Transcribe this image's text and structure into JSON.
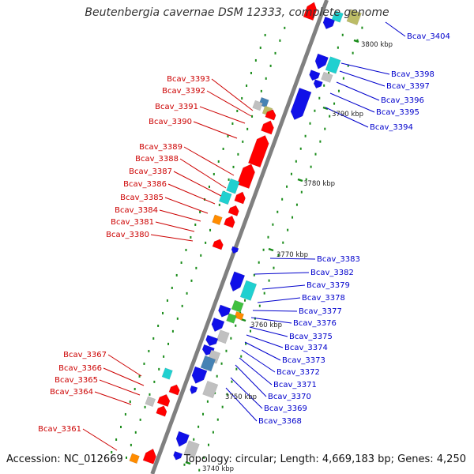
{
  "title": "Beutenbergia cavernae DSM 12333, complete genome",
  "accession": "Accession: NC_012669",
  "topology": "Topology: circular; Length: 4,669,183 bp; Genes: 4,250",
  "colors": {
    "forward_label": "#cc0000",
    "reverse_label": "#0000cc",
    "backbone": "#808080",
    "tick": "#1a8c1a",
    "red": "#ff0000",
    "blue": "#1010e8",
    "cyan": "#20d0d0",
    "gray": "#c0c0c0",
    "orange": "#ff8c00",
    "green": "#40c040",
    "steel": "#4682b4",
    "olive": "#bcbc66"
  },
  "scale_labels": [
    "3800 kbp",
    "3790 kbp",
    "3780 kbp",
    "3770 kbp",
    "3760 kbp",
    "3750 kbp",
    "3740 kbp"
  ],
  "forward_labels": [
    "Bcav_3393",
    "Bcav_3392",
    "Bcav_3391",
    "Bcav_3390",
    "Bcav_3389",
    "Bcav_3388",
    "Bcav_3387",
    "Bcav_3386",
    "Bcav_3385",
    "Bcav_3384",
    "Bcav_3381",
    "Bcav_3380",
    "Bcav_3367",
    "Bcav_3366",
    "Bcav_3365",
    "Bcav_3364",
    "Bcav_3361"
  ],
  "reverse_labels": [
    "Bcav_3404",
    "Bcav_3398",
    "Bcav_3397",
    "Bcav_3396",
    "Bcav_3395",
    "Bcav_3394",
    "Bcav_3383",
    "Bcav_3382",
    "Bcav_3379",
    "Bcav_3378",
    "Bcav_3377",
    "Bcav_3376",
    "Bcav_3375",
    "Bcav_3374",
    "Bcav_3373",
    "Bcav_3372",
    "Bcav_3371",
    "Bcav_3370",
    "Bcav_3369",
    "Bcav_3368"
  ]
}
